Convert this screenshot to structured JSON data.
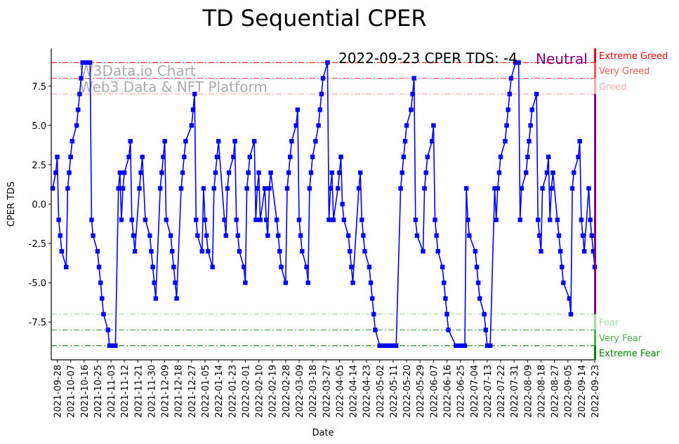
{
  "chart_data": {
    "type": "line",
    "title": "TD Sequential CPER",
    "xlabel": "Date",
    "ylabel": "CPER TDS",
    "x_start": "2021-09-28",
    "xlim_days": [
      -4,
      360
    ],
    "ylim": [
      -9.9,
      9.9
    ],
    "grid": false,
    "y_ticks": [
      "-7.5",
      "-5.0",
      "-2.5",
      "0.0",
      "2.5",
      "5.0",
      "7.5"
    ],
    "x_ticks": [
      "2021-09-28",
      "2021-10-07",
      "2021-10-16",
      "2021-10-25",
      "2021-11-03",
      "2021-11-12",
      "2021-11-21",
      "2021-11-30",
      "2021-12-09",
      "2021-12-18",
      "2021-12-27",
      "2022-01-05",
      "2022-01-14",
      "2022-01-23",
      "2022-02-01",
      "2022-02-10",
      "2022-02-19",
      "2022-02-28",
      "2022-03-09",
      "2022-03-18",
      "2022-03-27",
      "2022-04-05",
      "2022-04-14",
      "2022-04-23",
      "2022-05-02",
      "2022-05-11",
      "2022-05-20",
      "2022-05-29",
      "2022-06-07",
      "2022-06-16",
      "2022-06-25",
      "2022-07-04",
      "2022-07-13",
      "2022-07-22",
      "2022-07-31",
      "2022-08-09",
      "2022-08-18",
      "2022-08-27",
      "2022-09-05",
      "2022-09-14",
      "2022-09-23"
    ],
    "x_tick_step_days": 9,
    "series": [
      {
        "name": "CPER TDS",
        "color": "#0000ff",
        "points_day_value": [
          [
            -3,
            1
          ],
          [
            -1,
            2
          ],
          [
            0,
            3
          ],
          [
            1,
            -1
          ],
          [
            2,
            -2
          ],
          [
            3,
            -3
          ],
          [
            6,
            -4
          ],
          [
            7,
            1
          ],
          [
            8,
            2
          ],
          [
            9,
            3
          ],
          [
            10,
            4
          ],
          [
            13,
            5
          ],
          [
            14,
            6
          ],
          [
            15,
            7
          ],
          [
            16,
            8
          ],
          [
            17,
            9
          ],
          [
            19,
            9
          ],
          [
            20,
            9
          ],
          [
            22,
            9
          ],
          [
            23,
            -1
          ],
          [
            24,
            -2
          ],
          [
            27,
            -3
          ],
          [
            28,
            -4
          ],
          [
            29,
            -5
          ],
          [
            30,
            -6
          ],
          [
            31,
            -7
          ],
          [
            34,
            -8
          ],
          [
            35,
            -9
          ],
          [
            37,
            -9
          ],
          [
            39,
            -9
          ],
          [
            41,
            1
          ],
          [
            42,
            2
          ],
          [
            43,
            -1
          ],
          [
            44,
            1
          ],
          [
            45,
            2
          ],
          [
            48,
            3
          ],
          [
            49,
            4
          ],
          [
            50,
            -1
          ],
          [
            51,
            -2
          ],
          [
            52,
            -3
          ],
          [
            55,
            1
          ],
          [
            56,
            2
          ],
          [
            57,
            3
          ],
          [
            59,
            -1
          ],
          [
            62,
            -2
          ],
          [
            63,
            -3
          ],
          [
            64,
            -4
          ],
          [
            65,
            -5
          ],
          [
            66,
            -6
          ],
          [
            69,
            1
          ],
          [
            70,
            2
          ],
          [
            71,
            3
          ],
          [
            72,
            4
          ],
          [
            73,
            -1
          ],
          [
            76,
            -2
          ],
          [
            77,
            -3
          ],
          [
            78,
            -4
          ],
          [
            79,
            -5
          ],
          [
            80,
            -6
          ],
          [
            83,
            1
          ],
          [
            84,
            2
          ],
          [
            85,
            3
          ],
          [
            86,
            4
          ],
          [
            90,
            5
          ],
          [
            91,
            6
          ],
          [
            92,
            7
          ],
          [
            93,
            -1
          ],
          [
            94,
            -2
          ],
          [
            97,
            -3
          ],
          [
            98,
            1
          ],
          [
            99,
            -1
          ],
          [
            100,
            -2
          ],
          [
            101,
            -3
          ],
          [
            104,
            -4
          ],
          [
            105,
            1
          ],
          [
            106,
            2
          ],
          [
            107,
            3
          ],
          [
            108,
            4
          ],
          [
            112,
            -1
          ],
          [
            113,
            -2
          ],
          [
            114,
            1
          ],
          [
            115,
            2
          ],
          [
            118,
            3
          ],
          [
            119,
            4
          ],
          [
            120,
            -1
          ],
          [
            121,
            -2
          ],
          [
            122,
            -3
          ],
          [
            125,
            -4
          ],
          [
            126,
            -5
          ],
          [
            127,
            1
          ],
          [
            128,
            2
          ],
          [
            129,
            3
          ],
          [
            132,
            4
          ],
          [
            133,
            -1
          ],
          [
            134,
            1
          ],
          [
            135,
            2
          ],
          [
            136,
            -1
          ],
          [
            139,
            1
          ],
          [
            140,
            -1
          ],
          [
            141,
            -2
          ],
          [
            142,
            1
          ],
          [
            143,
            2
          ],
          [
            147,
            -1
          ],
          [
            148,
            -2
          ],
          [
            149,
            -3
          ],
          [
            150,
            -4
          ],
          [
            153,
            -5
          ],
          [
            154,
            1
          ],
          [
            155,
            2
          ],
          [
            156,
            3
          ],
          [
            157,
            4
          ],
          [
            160,
            5
          ],
          [
            161,
            6
          ],
          [
            162,
            -1
          ],
          [
            163,
            -2
          ],
          [
            164,
            -3
          ],
          [
            167,
            -4
          ],
          [
            168,
            -5
          ],
          [
            169,
            1
          ],
          [
            170,
            2
          ],
          [
            171,
            3
          ],
          [
            173,
            4
          ],
          [
            175,
            5
          ],
          [
            176,
            6
          ],
          [
            177,
            7
          ],
          [
            178,
            8
          ],
          [
            181,
            9
          ],
          [
            182,
            -1
          ],
          [
            183,
            1
          ],
          [
            184,
            2
          ],
          [
            185,
            -1
          ],
          [
            188,
            1
          ],
          [
            189,
            2
          ],
          [
            190,
            3
          ],
          [
            191,
            0
          ],
          [
            192,
            -1
          ],
          [
            195,
            -2
          ],
          [
            196,
            -3
          ],
          [
            197,
            -4
          ],
          [
            198,
            -5
          ],
          [
            202,
            1
          ],
          [
            203,
            2
          ],
          [
            204,
            -1
          ],
          [
            205,
            -2
          ],
          [
            206,
            -3
          ],
          [
            209,
            -4
          ],
          [
            210,
            -5
          ],
          [
            211,
            -6
          ],
          [
            212,
            -7
          ],
          [
            213,
            -8
          ],
          [
            216,
            -9
          ],
          [
            218,
            -9
          ],
          [
            220,
            -9
          ],
          [
            222,
            -9
          ],
          [
            224,
            -9
          ],
          [
            226,
            -9
          ],
          [
            227,
            -9
          ],
          [
            230,
            1
          ],
          [
            231,
            2
          ],
          [
            232,
            3
          ],
          [
            233,
            4
          ],
          [
            234,
            5
          ],
          [
            237,
            6
          ],
          [
            238,
            7
          ],
          [
            239,
            8
          ],
          [
            240,
            -1
          ],
          [
            241,
            -2
          ],
          [
            245,
            -3
          ],
          [
            246,
            1
          ],
          [
            247,
            2
          ],
          [
            248,
            3
          ],
          [
            251,
            4
          ],
          [
            252,
            5
          ],
          [
            253,
            -1
          ],
          [
            254,
            -2
          ],
          [
            255,
            -3
          ],
          [
            258,
            -4
          ],
          [
            259,
            -5
          ],
          [
            260,
            -6
          ],
          [
            261,
            -7
          ],
          [
            262,
            -8
          ],
          [
            267,
            -9
          ],
          [
            270,
            -9
          ],
          [
            273,
            -9
          ],
          [
            274,
            1
          ],
          [
            275,
            -1
          ],
          [
            276,
            -2
          ],
          [
            280,
            -3
          ],
          [
            281,
            -4
          ],
          [
            282,
            -5
          ],
          [
            283,
            -6
          ],
          [
            286,
            -7
          ],
          [
            287,
            -8
          ],
          [
            288,
            -9
          ],
          [
            290,
            -9
          ],
          [
            293,
            1
          ],
          [
            294,
            -1
          ],
          [
            295,
            1
          ],
          [
            296,
            2
          ],
          [
            297,
            3
          ],
          [
            300,
            4
          ],
          [
            301,
            5
          ],
          [
            302,
            6
          ],
          [
            303,
            7
          ],
          [
            304,
            8
          ],
          [
            307,
            9
          ],
          [
            309,
            9
          ],
          [
            310,
            -1
          ],
          [
            311,
            1
          ],
          [
            314,
            2
          ],
          [
            315,
            3
          ],
          [
            316,
            4
          ],
          [
            317,
            5
          ],
          [
            318,
            6
          ],
          [
            321,
            7
          ],
          [
            322,
            -1
          ],
          [
            323,
            -2
          ],
          [
            324,
            -3
          ],
          [
            325,
            1
          ],
          [
            328,
            2
          ],
          [
            329,
            3
          ],
          [
            330,
            -1
          ],
          [
            331,
            1
          ],
          [
            332,
            2
          ],
          [
            335,
            -1
          ],
          [
            336,
            -2
          ],
          [
            337,
            -3
          ],
          [
            338,
            -4
          ],
          [
            339,
            -5
          ],
          [
            343,
            -6
          ],
          [
            344,
            -7
          ],
          [
            345,
            1
          ],
          [
            346,
            2
          ],
          [
            349,
            3
          ],
          [
            350,
            4
          ],
          [
            351,
            -1
          ],
          [
            352,
            -2
          ],
          [
            353,
            -3
          ],
          [
            356,
            1
          ],
          [
            357,
            -1
          ],
          [
            358,
            -2
          ],
          [
            359,
            -3
          ],
          [
            360,
            -4
          ]
        ]
      }
    ],
    "levels": [
      {
        "value": 9,
        "label": "Extreme Greed",
        "color": "#ff0000",
        "band": [
          9,
          9.9
        ]
      },
      {
        "value": 8,
        "label": "Very Greed",
        "color": "#ff5555",
        "band": [
          8,
          9
        ]
      },
      {
        "value": 7,
        "label": "Greed",
        "color": "#ffaaaa",
        "band": [
          7,
          8
        ]
      },
      {
        "value": -7,
        "label": "Fear",
        "color": "#a3d9a3",
        "band": [
          -8,
          -7
        ]
      },
      {
        "value": -8,
        "label": "Very Fear",
        "color": "#4caf50",
        "band": [
          -9,
          -8
        ]
      },
      {
        "value": -9,
        "label": "Extreme Fear",
        "color": "#008000",
        "band": [
          -9.9,
          -9
        ]
      }
    ],
    "neutral_band": {
      "range": [
        -7,
        7
      ],
      "color": "#800080"
    },
    "annotation": {
      "text": "2022-09-23 CPER TDS: -4",
      "status": "Neutral",
      "status_color": "#800080"
    },
    "watermark": {
      "line1": "W3Data.io Chart",
      "line2": "Web3 Data & NFT Platform"
    }
  }
}
